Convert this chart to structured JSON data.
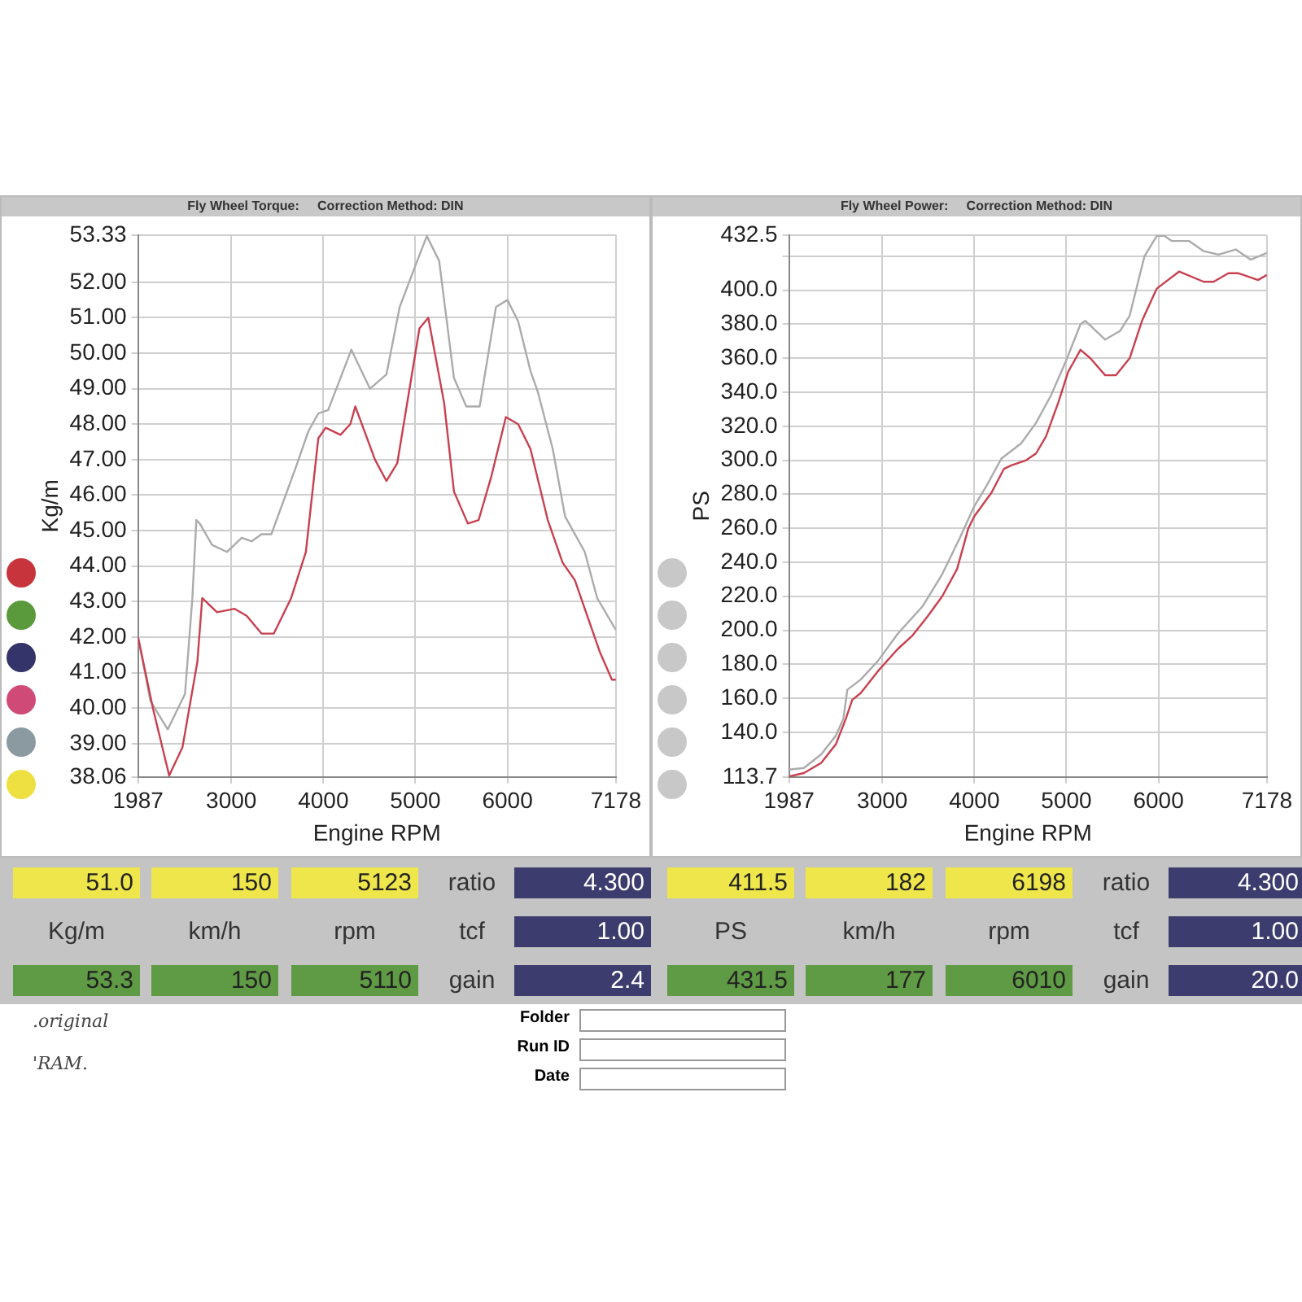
{
  "chart_data": [
    {
      "type": "line",
      "subtitle": "Fly Wheel Torque:     Correction Method: DIN",
      "xlabel": "Engine RPM",
      "ylabel": "Kg/m",
      "xlim": [
        1987,
        7178
      ],
      "xticks": [
        1987,
        3000,
        4000,
        5000,
        6000,
        7178
      ],
      "ylim": [
        38.06,
        53.33
      ],
      "yticks": [
        38.06,
        {
          "value": 39,
          "label": "39.00"
        },
        {
          "value": 40,
          "label": "40.00"
        },
        {
          "value": 41,
          "label": "41.00"
        },
        {
          "value": 42,
          "label": "42.00"
        },
        {
          "value": 43,
          "label": "43.00"
        },
        {
          "value": 44,
          "label": "44.00"
        },
        {
          "value": 45,
          "label": "45.00"
        },
        {
          "value": 46,
          "label": "46.00"
        },
        {
          "value": 47,
          "label": "47.00"
        },
        {
          "value": 48,
          "label": "48.00"
        },
        {
          "value": 49,
          "label": "49.00"
        },
        {
          "value": 50,
          "label": "50.00"
        },
        {
          "value": 51,
          "label": "51.00"
        },
        {
          "value": 52,
          "label": "52.00"
        },
        53.33
      ],
      "grid": true,
      "legend": false,
      "marker": "none",
      "line_style": "solid",
      "series": [
        {
          "color": "#c8404f",
          "x": [
            1987,
            2148,
            2325,
            2470,
            2631,
            2684,
            2845,
            3033,
            3167,
            3328,
            3462,
            3650,
            3810,
            3945,
            4025,
            4186,
            4293,
            4347,
            4561,
            4685,
            4803,
            5044,
            5140,
            5312,
            5419,
            5570,
            5687,
            5822,
            5983,
            6116,
            6250,
            6438,
            6599,
            6733,
            6867,
            7001,
            7135,
            7178
          ],
          "values": [
            42.0,
            40.0,
            38.1,
            38.9,
            41.3,
            43.1,
            42.7,
            42.8,
            42.6,
            42.1,
            42.1,
            43.1,
            44.4,
            47.6,
            47.9,
            47.7,
            48.0,
            48.5,
            47.0,
            46.4,
            46.9,
            50.7,
            51.0,
            48.6,
            46.1,
            45.2,
            45.3,
            46.5,
            48.2,
            48.0,
            47.3,
            45.3,
            44.1,
            43.6,
            42.6,
            41.6,
            40.8,
            40.8
          ]
        },
        {
          "color": "#ababab",
          "x": [
            1987,
            2121,
            2309,
            2497,
            2577,
            2620,
            2657,
            2791,
            2952,
            3113,
            3220,
            3328,
            3435,
            3703,
            3837,
            3945,
            4052,
            4186,
            4304,
            4507,
            4685,
            4829,
            4990,
            5124,
            5258,
            5419,
            5553,
            5698,
            5875,
            6000,
            6116,
            6250,
            6331,
            6492,
            6626,
            6840,
            6975,
            7178
          ],
          "values": [
            42.0,
            40.2,
            39.4,
            40.4,
            43.1,
            45.3,
            45.2,
            44.6,
            44.4,
            44.8,
            44.7,
            44.9,
            44.9,
            46.8,
            47.8,
            48.3,
            48.4,
            49.3,
            50.1,
            49.0,
            49.4,
            51.3,
            52.4,
            53.3,
            52.6,
            49.3,
            48.5,
            48.5,
            51.3,
            51.5,
            50.9,
            49.5,
            48.9,
            47.3,
            45.4,
            44.4,
            43.1,
            42.2
          ]
        }
      ],
      "annotations": [
        "51.0",
        "150",
        "5123",
        "ratio",
        "4.300",
        "Kg/m",
        "km/h",
        "rpm",
        "tcf",
        "1.00",
        "53.3",
        "150",
        "5110",
        "gain",
        "2.4",
        ".original",
        "'RAM."
      ]
    },
    {
      "type": "line",
      "subtitle": "Fly Wheel Power:     Correction Method: DIN",
      "xlabel": "Engine RPM",
      "ylabel": "PS",
      "xlim": [
        1987,
        7178
      ],
      "xticks": [
        1987,
        3000,
        4000,
        5000,
        6000,
        7178
      ],
      "ylim": [
        113.7,
        432.5
      ],
      "yticks": [
        113.7,
        {
          "value": 140,
          "label": "140.0"
        },
        {
          "value": 160,
          "label": "160.0"
        },
        {
          "value": 180,
          "label": "180.0"
        },
        {
          "value": 200,
          "label": "200.0"
        },
        {
          "value": 220,
          "label": "220.0"
        },
        {
          "value": 240,
          "label": "240.0"
        },
        {
          "value": 260,
          "label": "260.0"
        },
        {
          "value": 280,
          "label": "280.0"
        },
        {
          "value": 300,
          "label": "300.0"
        },
        {
          "value": 320,
          "label": "320.0"
        },
        {
          "value": 340,
          "label": "340.0"
        },
        {
          "value": 360,
          "label": "360.0"
        },
        {
          "value": 380,
          "label": "380.0"
        },
        {
          "value": 400,
          "label": "400.0"
        },
        {
          "value": 420,
          "label": null
        },
        432.5
      ],
      "grid": true,
      "legend": false,
      "marker": "none",
      "line_style": "solid",
      "series": [
        {
          "color": "#c8404f",
          "x": [
            1987,
            2148,
            2336,
            2496,
            2604,
            2673,
            2765,
            2953,
            3168,
            3329,
            3490,
            3651,
            3812,
            3935,
            3999,
            4187,
            4322,
            4402,
            4563,
            4670,
            4778,
            4912,
            5019,
            5153,
            5260,
            5421,
            5537,
            5687,
            5821,
            5982,
            6224,
            6492,
            6599,
            6760,
            6867,
            7082,
            7178
          ],
          "values": [
            114,
            116,
            122,
            133,
            148,
            159,
            163,
            176,
            189,
            197,
            208,
            220,
            236,
            260,
            267,
            281,
            295,
            297,
            300,
            304,
            314,
            334,
            352,
            365,
            360,
            350,
            350,
            360,
            382,
            401,
            411,
            405,
            405,
            410,
            410,
            406,
            409
          ]
        },
        {
          "color": "#ababab",
          "x": [
            1987,
            2148,
            2336,
            2496,
            2577,
            2620,
            2765,
            2953,
            3168,
            3436,
            3651,
            3839,
            3999,
            4133,
            4294,
            4509,
            4670,
            4831,
            4992,
            5153,
            5206,
            5421,
            5582,
            5687,
            5848,
            5982,
            6062,
            6143,
            6331,
            6492,
            6653,
            6840,
            7001,
            7178
          ],
          "values": [
            118,
            119,
            127,
            138,
            148,
            165,
            171,
            182,
            198,
            214,
            233,
            254,
            273,
            285,
            301,
            310,
            322,
            338,
            358,
            380,
            382,
            371,
            376,
            385,
            420,
            432,
            432,
            429,
            429,
            423,
            421,
            424,
            418,
            422
          ]
        }
      ],
      "annotations": [
        "411.5",
        "182",
        "6198",
        "ratio",
        "4.300",
        "PS",
        "km/h",
        "rpm",
        "tcf",
        "1.00",
        "431.5",
        "177",
        "6010",
        "gain",
        "20.0",
        "Folder",
        "Run ID",
        "Date"
      ]
    }
  ]
}
